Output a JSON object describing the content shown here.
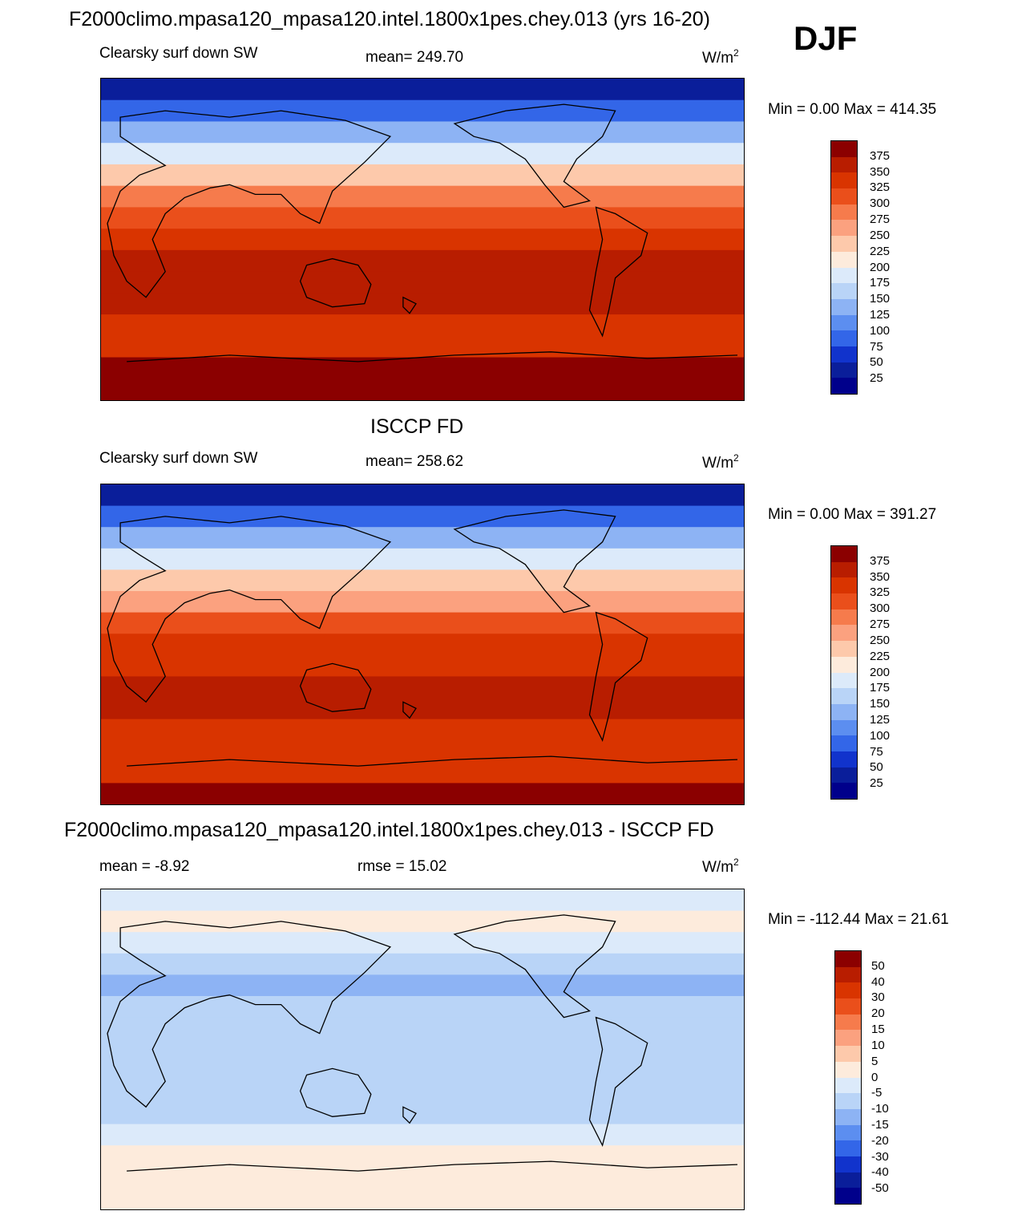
{
  "figure": {
    "title": "F2000climo.mpasa120_mpasa120.intel.1800x1pes.chey.013 (yrs 16-20)",
    "season": "DJF",
    "units_base": "W/m",
    "units_exp": "2"
  },
  "chart_data": [
    {
      "type": "heatmap",
      "panel": "model",
      "left_label": "Clearsky surf down SW",
      "center_label": "mean= 249.70",
      "min_label": "Min =    0.00",
      "max_label": "Max = 414.35",
      "min": 0.0,
      "max": 414.35,
      "mean": 249.7,
      "units": "W/m2",
      "colorbar_levels": [
        "375",
        "350",
        "325",
        "300",
        "275",
        "250",
        "225",
        "200",
        "175",
        "150",
        "125",
        "100",
        "75",
        "50",
        "25"
      ],
      "colorbar_colors": [
        "#8b0000",
        "#b81d00",
        "#d93400",
        "#ea4f1b",
        "#f67b4c",
        "#fba17f",
        "#fdc9ab",
        "#fdebdc",
        "#dceafa",
        "#b9d4f7",
        "#8db3f4",
        "#5c8ef0",
        "#3366e8",
        "#1133cc",
        "#0a1e9a",
        "#00008b"
      ],
      "zonal_profile_note": "bands from north pole to south pole",
      "zonal_band_values": [
        25,
        75,
        125,
        175,
        225,
        275,
        300,
        325,
        350,
        350,
        350,
        340,
        340,
        375,
        400
      ]
    },
    {
      "type": "heatmap",
      "panel": "obs",
      "title": "ISCCP FD",
      "left_label": "Clearsky surf down SW",
      "center_label": "mean= 258.62",
      "min_label": "Min =    0.00",
      "max_label": "Max = 391.27",
      "min": 0.0,
      "max": 391.27,
      "mean": 258.62,
      "units": "W/m2",
      "colorbar_levels": [
        "375",
        "350",
        "325",
        "300",
        "275",
        "250",
        "225",
        "200",
        "175",
        "150",
        "125",
        "100",
        "75",
        "50",
        "25"
      ],
      "colorbar_colors": [
        "#8b0000",
        "#b81d00",
        "#d93400",
        "#ea4f1b",
        "#f67b4c",
        "#fba17f",
        "#fdc9ab",
        "#fdebdc",
        "#dceafa",
        "#b9d4f7",
        "#8db3f4",
        "#5c8ef0",
        "#3366e8",
        "#1133cc",
        "#0a1e9a",
        "#00008b"
      ],
      "zonal_band_values": [
        25,
        75,
        125,
        175,
        225,
        260,
        300,
        325,
        340,
        350,
        350,
        340,
        330,
        330,
        375
      ]
    },
    {
      "type": "heatmap",
      "panel": "difference",
      "title": "F2000climo.mpasa120_mpasa120.intel.1800x1pes.chey.013 - ISCCP FD",
      "left_label": "mean =  -8.92",
      "center_label": "rmse =  15.02",
      "min_label": "Min = -112.44",
      "max_label": "Max =  21.61",
      "min": -112.44,
      "max": 21.61,
      "mean": -8.92,
      "rmse": 15.02,
      "units": "W/m2",
      "colorbar_levels": [
        "50",
        "40",
        "30",
        "20",
        "15",
        "10",
        "5",
        "0",
        "-5",
        "-10",
        "-15",
        "-20",
        "-30",
        "-40",
        "-50"
      ],
      "colorbar_colors": [
        "#8b0000",
        "#b81d00",
        "#d93400",
        "#ea4f1b",
        "#f67b4c",
        "#fba17f",
        "#fdc9ab",
        "#fdebdc",
        "#dceafa",
        "#b9d4f7",
        "#8db3f4",
        "#5c8ef0",
        "#3366e8",
        "#1133cc",
        "#0a1e9a",
        "#00008b"
      ],
      "zonal_band_values": [
        -2,
        2,
        -3,
        -8,
        -12,
        -10,
        -8,
        -6,
        -8,
        -10,
        -8,
        -5,
        2,
        3,
        2
      ]
    }
  ]
}
